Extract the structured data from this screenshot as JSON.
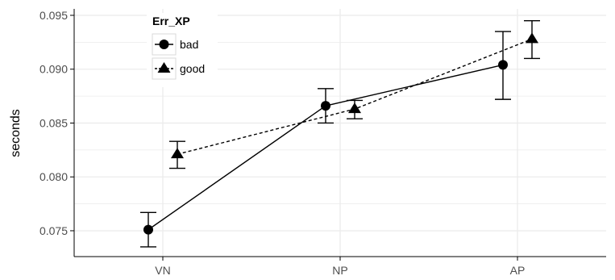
{
  "chart_data": {
    "type": "line",
    "title": "",
    "xlabel": "",
    "ylabel": "seconds",
    "categories": [
      "VN",
      "NP",
      "AP"
    ],
    "ylim": [
      0.0726,
      0.0956
    ],
    "y_ticks": [
      0.075,
      0.08,
      0.085,
      0.09,
      0.095
    ],
    "y_tick_labels": [
      "0.075",
      "0.080",
      "0.085",
      "0.090",
      "0.095"
    ],
    "grid": true,
    "legend": {
      "title": "Err_XP",
      "placement": "top-left"
    },
    "series": [
      {
        "name": "bad",
        "marker": "circle",
        "linestyle": "solid",
        "dodge": -1,
        "values": [
          0.0751,
          0.0866,
          0.0904
        ],
        "err_low": [
          0.0735,
          0.085,
          0.0872
        ],
        "err_high": [
          0.0767,
          0.0882,
          0.0935
        ]
      },
      {
        "name": "good",
        "marker": "triangle",
        "linestyle": "dashed",
        "dodge": 1,
        "values": [
          0.0821,
          0.0863,
          0.0928
        ],
        "err_low": [
          0.0808,
          0.0854,
          0.091
        ],
        "err_high": [
          0.0833,
          0.0871,
          0.0945
        ]
      }
    ],
    "colors": {
      "grid": "#ebebeb",
      "ink": "#000000",
      "axis": "#000000",
      "tick_text": "#4d4d4d",
      "legend_border": "#d9d9d9"
    }
  }
}
